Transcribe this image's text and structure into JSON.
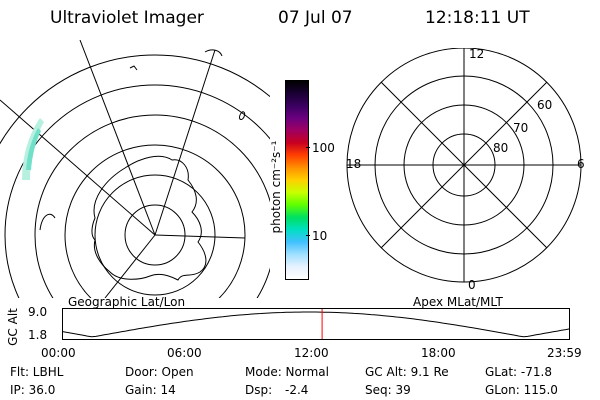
{
  "header": {
    "title": "Ultraviolet Imager",
    "date": "07 Jul 07",
    "time": "12:18:11 UT"
  },
  "left_panel": {
    "label": "Geographic Lat/Lon"
  },
  "colorbar": {
    "unit_label": "photon cm⁻²s⁻¹",
    "ticks": [
      "100",
      "10"
    ],
    "colors": [
      "#000000",
      "#1a0033",
      "#3a0060",
      "#6a0080",
      "#a00060",
      "#c80020",
      "#ff4000",
      "#ff9000",
      "#ffd000",
      "#c8ff00",
      "#60ff00",
      "#00e060",
      "#00e0c0",
      "#40c0ff",
      "#a0e0ff",
      "#e6f2ff",
      "#ffffff"
    ]
  },
  "right_panel": {
    "label": "Apex MLat/MLT",
    "mlt_labels": {
      "top": "12",
      "bottom": "0",
      "left": "18",
      "right": "6"
    },
    "lat_labels": [
      "60",
      "70",
      "80"
    ]
  },
  "timeline": {
    "y_label": "GC Alt",
    "y_ticks": [
      "9.0",
      "1.8"
    ],
    "x_ticks": [
      "00:00",
      "06:00",
      "12:00",
      "18:00",
      "23:59"
    ],
    "marker_time_fraction": 0.512,
    "marker_color": "#ff0000"
  },
  "info": {
    "row1": [
      "Flt: LBHL",
      "Door: Open",
      "Mode: Normal",
      "GC Alt: 9.1 Re",
      "GLat: -71.8"
    ],
    "row2": [
      "IP: 36.0",
      "Gain: 14",
      "Dsp:",
      "-2.4",
      "Seq: 39",
      "GLon: 115.0"
    ]
  }
}
